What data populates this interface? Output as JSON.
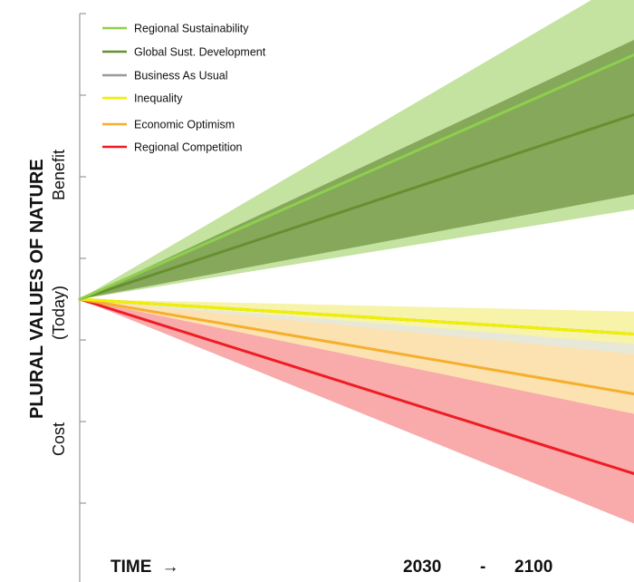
{
  "chart_data": {
    "type": "area",
    "y_axis": {
      "title": "PLURAL VALUES OF NATURE",
      "subtitle": "(Today)",
      "upper_label": "Benefit",
      "lower_label": "Cost"
    },
    "x_axis": {
      "label": "TIME",
      "arrow": "→",
      "start_label": "2030",
      "separator": "-",
      "end_label": "2100"
    },
    "ylim": [
      -6,
      6
    ],
    "grid": false,
    "legend_position": "top-left",
    "series": [
      {
        "name": "Regional Sustainability",
        "color": "#8fcf4e",
        "band_color": "#c4e2a0",
        "x": [
          0,
          1
        ],
        "y": [
          0,
          4.9
        ],
        "band_low": [
          0,
          1.8
        ],
        "band_high": [
          0,
          6.5
        ]
      },
      {
        "name": "Global Sust. Development",
        "color": "#66902f",
        "band_color": "#86a85a",
        "x": [
          0,
          1
        ],
        "y": [
          0,
          3.7
        ],
        "band_low": [
          0,
          2.1
        ],
        "band_high": [
          0,
          5.2
        ]
      },
      {
        "name": "Business As Usual",
        "color": "#999999",
        "band_color": "#e8e8d8",
        "x": [
          0,
          1
        ],
        "y": [
          0,
          -0.7
        ],
        "band_low": [
          0,
          -1.1
        ],
        "band_high": [
          0,
          -0.3
        ]
      },
      {
        "name": "Inequality",
        "color": "#f0f000",
        "band_color": "#f7f3a8",
        "x": [
          0,
          1
        ],
        "y": [
          0,
          -0.7
        ],
        "band_low": [
          0,
          -0.9
        ],
        "band_high": [
          0,
          -0.25
        ]
      },
      {
        "name": "Economic Optimism",
        "color": "#f6ae2d",
        "band_color": "#fbe2b0",
        "x": [
          0,
          1
        ],
        "y": [
          0,
          -1.9
        ],
        "band_low": [
          0,
          -2.3
        ],
        "band_high": [
          0,
          -0.7
        ]
      },
      {
        "name": "Regional Competition",
        "color": "#ee1c25",
        "band_color": "#f9aaaa",
        "x": [
          0,
          1
        ],
        "y": [
          0,
          -3.5
        ],
        "band_low": [
          0,
          -4.5
        ],
        "band_high": [
          0,
          -2.0
        ]
      }
    ]
  }
}
